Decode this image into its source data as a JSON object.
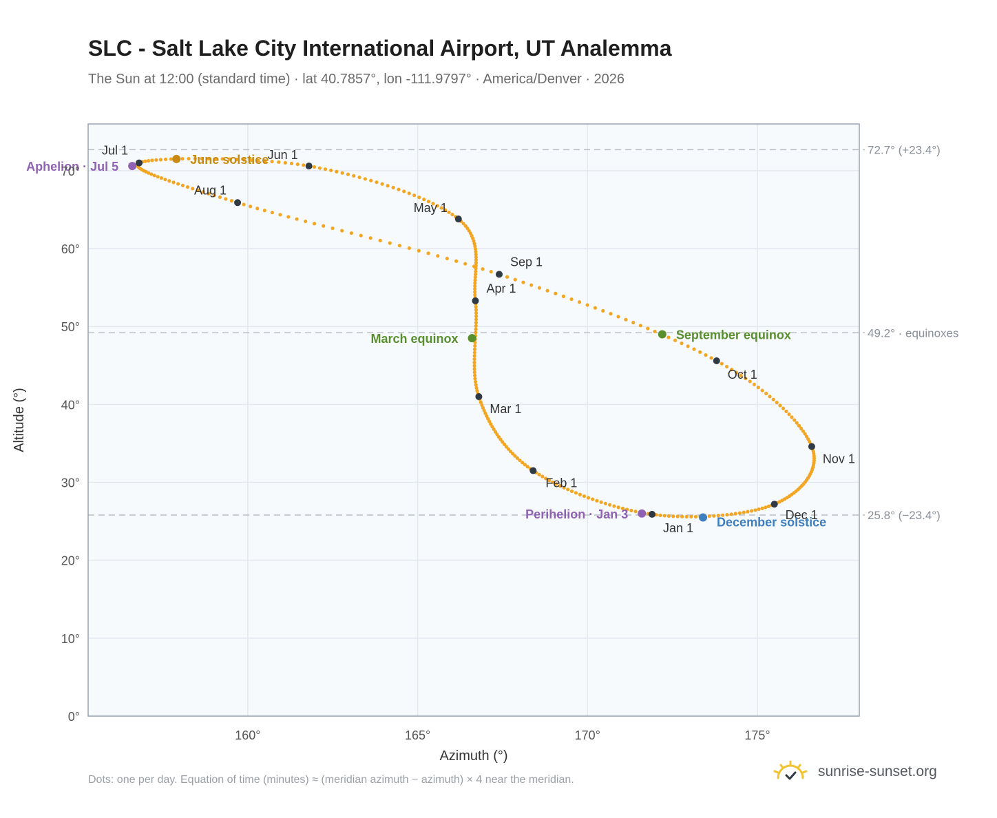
{
  "title": "SLC - Salt Lake City International Airport, UT Analemma",
  "subtitle": "The Sun at 12:00 (standard time) · lat 40.7857°, lon -111.9797° · America/Denver · 2026",
  "note": "Dots: one per day. Equation of time (minutes) ≈ (meridian azimuth − azimuth) × 4 near the meridian.",
  "brand": "sunrise-sunset.org",
  "colors": {
    "path": "#f2a623",
    "month": "#2f3a44",
    "equinox": "#5a8f2e",
    "june": "#c88a12",
    "december": "#3d7fc1",
    "apsis": "#8f62b4",
    "refline": "#b9bec5",
    "frame": "#9aa4b2",
    "plotbg": "#f7fafd",
    "grid": "#e3e8ee"
  },
  "chart_data": {
    "type": "scatter",
    "xlabel": "Azimuth (°)",
    "ylabel": "Altitude (°)",
    "xlim": [
      155.3,
      178.0
    ],
    "ylim": [
      0,
      76
    ],
    "x_ticks": [
      160,
      165,
      170,
      175
    ],
    "x_tick_labels": [
      "160°",
      "165°",
      "170°",
      "175°"
    ],
    "y_ticks": [
      0,
      10,
      20,
      30,
      40,
      50,
      60,
      70
    ],
    "y_tick_labels": [
      "0°",
      "10°",
      "20°",
      "30°",
      "40°",
      "50°",
      "60°",
      "70°"
    ],
    "grid": true,
    "reference_lines": [
      {
        "y": 72.7,
        "label": "72.7° (+23.4°)"
      },
      {
        "y": 49.2,
        "label": "49.2° · equinoxes"
      },
      {
        "y": 25.8,
        "label": "25.8° (−23.4°)"
      }
    ],
    "month_markers": [
      {
        "label": "Jan 1",
        "az": 171.9,
        "alt": 25.9
      },
      {
        "label": "Feb 1",
        "az": 168.4,
        "alt": 31.5
      },
      {
        "label": "Mar 1",
        "az": 166.8,
        "alt": 41.0
      },
      {
        "label": "Apr 1",
        "az": 166.7,
        "alt": 53.3
      },
      {
        "label": "May 1",
        "az": 166.2,
        "alt": 63.8
      },
      {
        "label": "Jun 1",
        "az": 161.8,
        "alt": 70.6
      },
      {
        "label": "Jul 1",
        "az": 156.8,
        "alt": 71.0
      },
      {
        "label": "Aug 1",
        "az": 159.7,
        "alt": 65.9
      },
      {
        "label": "Sep 1",
        "az": 167.4,
        "alt": 56.7
      },
      {
        "label": "Oct 1",
        "az": 173.8,
        "alt": 45.6
      },
      {
        "label": "Nov 1",
        "az": 176.6,
        "alt": 34.6
      },
      {
        "label": "Dec 1",
        "az": 175.5,
        "alt": 27.2
      }
    ],
    "events": [
      {
        "label": "March equinox",
        "az": 166.6,
        "alt": 48.5,
        "color": "equinox"
      },
      {
        "label": "June solstice",
        "az": 157.9,
        "alt": 71.5,
        "color": "june"
      },
      {
        "label": "September equinox",
        "az": 172.2,
        "alt": 49.0,
        "color": "equinox"
      },
      {
        "label": "December solstice",
        "az": 173.4,
        "alt": 25.5,
        "color": "december"
      },
      {
        "label": "Perihelion · Jan 3",
        "az": 171.6,
        "alt": 26.0,
        "color": "apsis"
      },
      {
        "label": "Aphelion · Jul 5",
        "az": 156.6,
        "alt": 70.6,
        "color": "apsis"
      }
    ]
  }
}
